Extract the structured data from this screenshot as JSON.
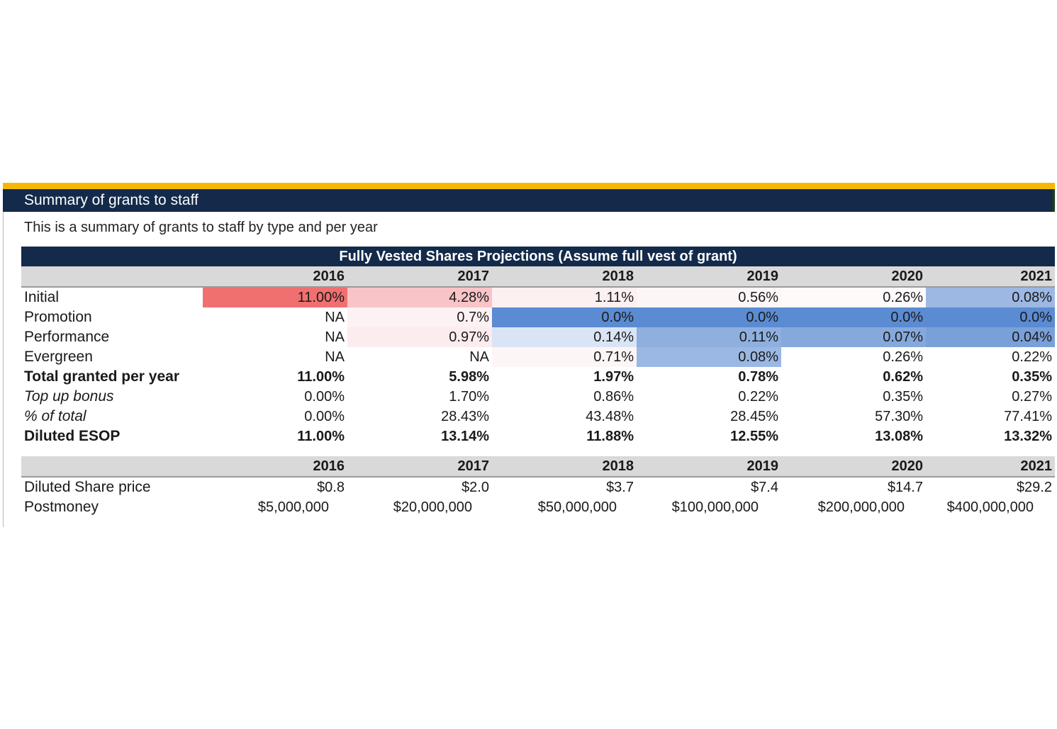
{
  "section": {
    "title": "Summary of grants to staff",
    "subtitle": "This is a summary of grants to staff by type and per year"
  },
  "table": {
    "title": "Fully Vested Shares Projections (Assume full vest of grant)",
    "years": [
      "2016",
      "2017",
      "2018",
      "2019",
      "2020",
      "2021"
    ],
    "rows": [
      {
        "label": "Initial",
        "style": "normal",
        "values": [
          "11.00%",
          "4.28%",
          "1.11%",
          "0.56%",
          "0.26%",
          "0.08%"
        ],
        "colors": [
          "#f07070",
          "#f9c4c7",
          "#fcf0f1",
          "#fdf6f7",
          "#fefafa",
          "#9db8e3"
        ]
      },
      {
        "label": "Promotion",
        "style": "normal",
        "values": [
          "NA",
          "0.7%",
          "0.0%",
          "0.0%",
          "0.0%",
          "0.0%"
        ],
        "colors": [
          "",
          "#fdf2f3",
          "#5b8bd2",
          "#5b8bd2",
          "#5b8bd2",
          "#5b8bd2"
        ]
      },
      {
        "label": "Performance",
        "style": "normal",
        "values": [
          "NA",
          "0.97%",
          "0.14%",
          "0.11%",
          "0.07%",
          "0.04%"
        ],
        "colors": [
          "",
          "#fcecee",
          "#d9e4f5",
          "#8fb0df",
          "#86a9dc",
          "#7aa0d9"
        ]
      },
      {
        "label": "Evergreen",
        "style": "normal",
        "values": [
          "NA",
          "NA",
          "0.71%",
          "0.08%",
          "0.26%",
          "0.22%"
        ],
        "colors": [
          "",
          "",
          "#fdf5f6",
          "#9bb7e3",
          "",
          ""
        ]
      },
      {
        "label": "Total granted per year",
        "style": "bold",
        "values": [
          "11.00%",
          "5.98%",
          "1.97%",
          "0.78%",
          "0.62%",
          "0.35%"
        ],
        "colors": [
          "",
          "",
          "",
          "",
          "",
          ""
        ]
      },
      {
        "label": "Top up bonus",
        "style": "italic",
        "values": [
          "0.00%",
          "1.70%",
          "0.86%",
          "0.22%",
          "0.35%",
          "0.27%"
        ],
        "colors": [
          "",
          "",
          "",
          "",
          "",
          ""
        ]
      },
      {
        "label": "% of total",
        "style": "italic",
        "values": [
          "0.00%",
          "28.43%",
          "43.48%",
          "28.45%",
          "57.30%",
          "77.41%"
        ],
        "colors": [
          "",
          "",
          "",
          "",
          "",
          ""
        ]
      },
      {
        "label": "Diluted ESOP",
        "style": "bold",
        "values": [
          "11.00%",
          "13.14%",
          "11.88%",
          "12.55%",
          "13.08%",
          "13.32%"
        ],
        "colors": [
          "",
          "",
          "",
          "",
          "",
          ""
        ]
      }
    ]
  },
  "price_table": {
    "years": [
      "2016",
      "2017",
      "2018",
      "2019",
      "2020",
      "2021"
    ],
    "share_price": {
      "label": "Diluted Share price",
      "values": [
        "$0.8",
        "$2.0",
        "$3.7",
        "$7.4",
        "$14.7",
        "$29.2"
      ]
    },
    "postmoney": {
      "label": "Postmoney",
      "values": [
        "$5,000,000",
        "$20,000,000",
        "$50,000,000",
        "$100,000,000",
        "$200,000,000",
        "$400,000,000"
      ]
    }
  },
  "colors": {
    "navy": "#132a4a",
    "gold": "#f5b800",
    "header_gray": "#d9d9d9"
  }
}
